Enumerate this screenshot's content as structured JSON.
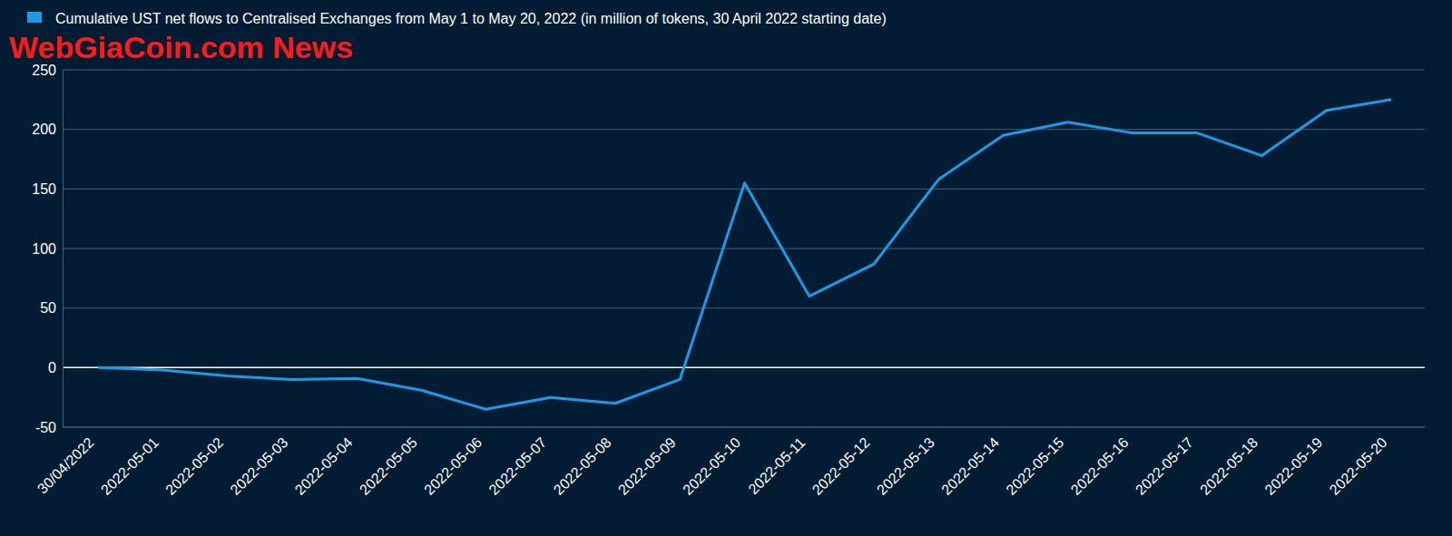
{
  "chart_data": {
    "type": "line",
    "categories": [
      "30/04/2022",
      "2022-05-01",
      "2022-05-02",
      "2022-05-03",
      "2022-05-04",
      "2022-05-05",
      "2022-05-06",
      "2022-05-07",
      "2022-05-08",
      "2022-05-09",
      "2022-05-10",
      "2022-05-11",
      "2022-05-12",
      "2022-05-13",
      "2022-05-14",
      "2022-05-15",
      "2022-05-16",
      "2022-05-17",
      "2022-05-18",
      "2022-05-19",
      "2022-05-20"
    ],
    "series": [
      {
        "name": "Cumulative UST net flows to Centralised Exchanges from May 1 to May 20, 2022 (in million of tokens, 30 April 2022 starting date)",
        "color": "#1a9be8",
        "values": [
          0,
          -2,
          -7,
          -10,
          -9,
          -19,
          -35,
          -25,
          -30,
          -10,
          155,
          60,
          87,
          158,
          195,
          206,
          197,
          197,
          178,
          216,
          225
        ]
      }
    ],
    "ylim": [
      -50,
      250
    ],
    "yticks": [
      -50,
      0,
      50,
      100,
      150,
      200,
      250
    ],
    "grid": true,
    "legend": "top-left",
    "annotations": [
      "WebGiaCoin.com News"
    ]
  }
}
